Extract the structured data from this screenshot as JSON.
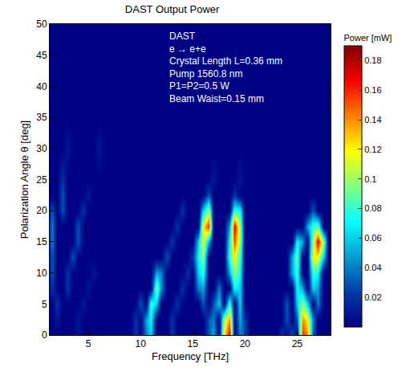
{
  "chart_data": {
    "type": "heatmap",
    "title": "DAST Output Power",
    "x_label": "Frequency [THz]",
    "y_label": "Polarization Angle θ [deg]",
    "colorbar_title": "Power [mW]",
    "annotations": [
      "DAST",
      "e → e+e",
      "Crystal Length L=0.36 mm",
      "Pump 1560.8 nm",
      "P1=P2=0.5 W",
      "Beam Waist=0.15 mm"
    ],
    "color": "Jet",
    "xlim": [
      1.3,
      28.2
    ],
    "xticks": [
      5,
      10,
      15,
      20,
      25
    ],
    "ylim": [
      0,
      50
    ],
    "yticks": [
      0,
      5,
      10,
      15,
      20,
      25,
      30,
      35,
      40,
      45,
      50
    ],
    "zlim": [
      0,
      0.19
    ],
    "zticks": [
      0.02,
      0.04,
      0.06,
      0.08,
      0.1,
      0.12,
      0.14,
      0.16,
      0.18
    ],
    "x": [
      1,
      1.5,
      2,
      2.5,
      3,
      3.5,
      4,
      4.5,
      5,
      5.5,
      6,
      6.5,
      7,
      7.5,
      8,
      8.5,
      9,
      9.5,
      10,
      10.5,
      11,
      11.5,
      12,
      12.5,
      13,
      13.5,
      14,
      14.5,
      15,
      15.5,
      16,
      16.5,
      17,
      17.5,
      18,
      18.5,
      19,
      19.5,
      20,
      20.5,
      21,
      21.5,
      22,
      22.5,
      23,
      23.5,
      24,
      24.5,
      25,
      25.5,
      26,
      26.5,
      27,
      27.5,
      28
    ],
    "y": [
      0,
      2.5,
      5,
      7.5,
      10,
      12.5,
      15,
      17.5,
      20,
      22.5,
      25,
      30,
      35,
      40,
      45,
      50
    ],
    "cells": [
      [
        0,
        0,
        0,
        0,
        0,
        0,
        0.01,
        0,
        0,
        0,
        0,
        0,
        0,
        0,
        0,
        0,
        0,
        0.02,
        0,
        0.04,
        0.06,
        0,
        0,
        0,
        0.02,
        0,
        0,
        0,
        0,
        0,
        0,
        0.03,
        0.05,
        0,
        0.12,
        0.17,
        0,
        0.04,
        0.03,
        0,
        0,
        0,
        0,
        0,
        0,
        0.02,
        0,
        0.03,
        0,
        0.16,
        0.14,
        0.03,
        0,
        0,
        0
      ],
      [
        0,
        0,
        0.01,
        0,
        0,
        0,
        0.01,
        0,
        0,
        0,
        0,
        0,
        0,
        0,
        0,
        0,
        0,
        0.02,
        0,
        0.05,
        0.07,
        0,
        0,
        0,
        0.02,
        0,
        0,
        0,
        0,
        0,
        0,
        0.03,
        0.04,
        0,
        0.1,
        0.14,
        0,
        0.05,
        0.02,
        0,
        0,
        0,
        0,
        0,
        0,
        0,
        0.03,
        0,
        0.03,
        0.14,
        0.12,
        0.04,
        0,
        0,
        0
      ],
      [
        0,
        0,
        0.02,
        0,
        0,
        0,
        0,
        0.01,
        0,
        0,
        0,
        0,
        0,
        0,
        0,
        0,
        0,
        0,
        0.03,
        0,
        0.08,
        0.06,
        0,
        0,
        0,
        0.02,
        0,
        0,
        0,
        0,
        0.03,
        0,
        0.03,
        0.06,
        0,
        0.08,
        0,
        0.06,
        0,
        0,
        0,
        0,
        0,
        0,
        0,
        0,
        0.03,
        0,
        0.06,
        0.1,
        0.06,
        0,
        0.04,
        0,
        0
      ],
      [
        0,
        0.02,
        0,
        0,
        0.02,
        0,
        0,
        0,
        0.01,
        0,
        0,
        0,
        0,
        0,
        0,
        0,
        0,
        0,
        0,
        0,
        0,
        0.1,
        0.04,
        0,
        0,
        0,
        0.02,
        0,
        0,
        0.04,
        0.05,
        0,
        0,
        0.04,
        0,
        0,
        0.07,
        0.06,
        0,
        0,
        0,
        0,
        0,
        0,
        0,
        0,
        0,
        0,
        0.07,
        0.05,
        0,
        0.06,
        0.05,
        0,
        0
      ],
      [
        0,
        0.03,
        0,
        0,
        0.02,
        0,
        0,
        0,
        0,
        0.01,
        0,
        0,
        0,
        0,
        0,
        0,
        0,
        0,
        0,
        0,
        0,
        0.05,
        0.04,
        0,
        0,
        0,
        0,
        0.02,
        0,
        0.06,
        0.08,
        0,
        0,
        0,
        0,
        0.05,
        0.1,
        0.07,
        0,
        0,
        0,
        0,
        0,
        0,
        0,
        0,
        0,
        0.05,
        0.08,
        0,
        0,
        0.08,
        0.07,
        0,
        0
      ],
      [
        0,
        0.03,
        0,
        0,
        0,
        0.03,
        0,
        0,
        0,
        0,
        0,
        0,
        0,
        0,
        0,
        0,
        0,
        0,
        0,
        0,
        0,
        0,
        0,
        0.03,
        0,
        0,
        0,
        0,
        0.02,
        0.07,
        0.1,
        0,
        0,
        0,
        0,
        0.08,
        0.12,
        0.08,
        0,
        0,
        0,
        0,
        0,
        0,
        0,
        0,
        0,
        0.05,
        0.09,
        0,
        0,
        0.12,
        0.12,
        0.06,
        0
      ],
      [
        0,
        0.04,
        0,
        0,
        0,
        0,
        0.03,
        0,
        0,
        0,
        0,
        0,
        0,
        0,
        0,
        0,
        0,
        0,
        0,
        0,
        0,
        0,
        0,
        0,
        0.02,
        0,
        0,
        0,
        0,
        0.06,
        0.12,
        0.05,
        0,
        0,
        0,
        0.07,
        0.15,
        0.1,
        0,
        0,
        0,
        0,
        0,
        0,
        0,
        0,
        0,
        0,
        0.07,
        0.05,
        0,
        0.1,
        0.17,
        0.1,
        0
      ],
      [
        0,
        0.04,
        0,
        0,
        0,
        0,
        0.03,
        0,
        0,
        0,
        0,
        0,
        0,
        0,
        0,
        0,
        0,
        0,
        0,
        0,
        0,
        0,
        0,
        0,
        0,
        0.02,
        0,
        0,
        0,
        0,
        0.12,
        0.16,
        0,
        0,
        0,
        0.05,
        0.17,
        0.1,
        0,
        0,
        0,
        0,
        0,
        0,
        0,
        0,
        0,
        0,
        0,
        0,
        0.05,
        0.08,
        0.09,
        0,
        0
      ],
      [
        0,
        0.03,
        0,
        0.03,
        0,
        0,
        0,
        0.02,
        0,
        0,
        0,
        0,
        0,
        0,
        0,
        0,
        0,
        0,
        0,
        0,
        0,
        0,
        0,
        0,
        0,
        0,
        0.02,
        0,
        0,
        0,
        0.06,
        0.1,
        0,
        0,
        0,
        0,
        0.08,
        0.07,
        0,
        0,
        0,
        0,
        0,
        0,
        0,
        0,
        0,
        0,
        0,
        0,
        0,
        0.03,
        0,
        0,
        0
      ],
      [
        0,
        0,
        0,
        0.03,
        0,
        0,
        0,
        0,
        0.01,
        0,
        0,
        0,
        0,
        0,
        0,
        0,
        0,
        0,
        0,
        0,
        0,
        0,
        0,
        0,
        0,
        0,
        0,
        0,
        0,
        0,
        0,
        0.03,
        0,
        0,
        0,
        0,
        0.02,
        0,
        0,
        0,
        0,
        0,
        0,
        0,
        0,
        0,
        0,
        0,
        0,
        0,
        0,
        0,
        0,
        0,
        0
      ],
      [
        0,
        0,
        0,
        0.02,
        0,
        0,
        0,
        0,
        0,
        0,
        0,
        0,
        0,
        0,
        0,
        0,
        0,
        0,
        0,
        0,
        0,
        0,
        0,
        0,
        0,
        0,
        0,
        0,
        0,
        0,
        0,
        0,
        0.01,
        0,
        0,
        0,
        0,
        0.01,
        0,
        0,
        0,
        0,
        0,
        0,
        0,
        0,
        0,
        0,
        0,
        0,
        0,
        0,
        0,
        0,
        0
      ],
      [
        0,
        0,
        0,
        0,
        0.01,
        0,
        0,
        0,
        0,
        0,
        0.01,
        0,
        0,
        0,
        0,
        0,
        0,
        0,
        0,
        0,
        0,
        0,
        0,
        0,
        0,
        0,
        0,
        0,
        0,
        0,
        0,
        0,
        0,
        0,
        0,
        0,
        0,
        0,
        0,
        0,
        0,
        0,
        0,
        0,
        0,
        0,
        0,
        0,
        0,
        0,
        0,
        0,
        0,
        0,
        0
      ],
      [
        0,
        0,
        0,
        0,
        0,
        0,
        0,
        0,
        0,
        0,
        0,
        0,
        0,
        0,
        0,
        0,
        0,
        0,
        0,
        0,
        0,
        0,
        0,
        0,
        0,
        0,
        0,
        0,
        0,
        0,
        0,
        0,
        0,
        0,
        0,
        0,
        0,
        0,
        0,
        0,
        0,
        0,
        0,
        0,
        0,
        0,
        0,
        0,
        0,
        0,
        0,
        0,
        0,
        0,
        0
      ],
      [
        0,
        0,
        0,
        0,
        0,
        0,
        0,
        0,
        0,
        0,
        0,
        0,
        0,
        0,
        0,
        0,
        0,
        0,
        0,
        0,
        0,
        0,
        0,
        0,
        0,
        0,
        0,
        0,
        0,
        0,
        0,
        0,
        0,
        0,
        0,
        0,
        0,
        0,
        0,
        0,
        0,
        0,
        0,
        0,
        0,
        0,
        0,
        0,
        0,
        0,
        0,
        0,
        0,
        0,
        0
      ],
      [
        0,
        0,
        0,
        0,
        0,
        0,
        0,
        0,
        0,
        0,
        0,
        0,
        0,
        0,
        0,
        0,
        0,
        0,
        0,
        0,
        0,
        0,
        0,
        0,
        0,
        0,
        0,
        0,
        0,
        0,
        0,
        0,
        0,
        0,
        0,
        0,
        0,
        0,
        0,
        0,
        0,
        0,
        0,
        0,
        0,
        0,
        0,
        0,
        0,
        0,
        0,
        0,
        0,
        0,
        0
      ],
      [
        0,
        0,
        0,
        0,
        0,
        0,
        0,
        0,
        0,
        0,
        0,
        0,
        0,
        0,
        0,
        0,
        0,
        0,
        0,
        0,
        0,
        0,
        0,
        0,
        0,
        0,
        0,
        0,
        0,
        0,
        0,
        0,
        0,
        0,
        0,
        0,
        0,
        0,
        0,
        0,
        0,
        0,
        0,
        0,
        0,
        0,
        0,
        0,
        0,
        0,
        0,
        0,
        0,
        0,
        0
      ]
    ]
  }
}
